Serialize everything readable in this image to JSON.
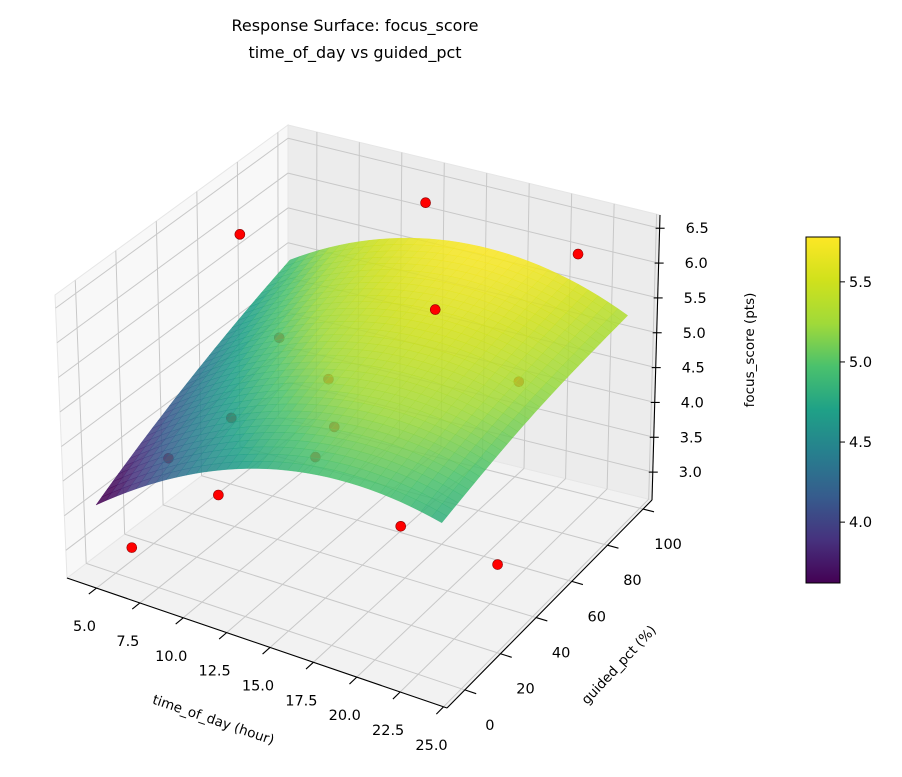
{
  "chart_data": {
    "type": "surface",
    "title": "Response Surface: focus_score",
    "subtitle": "time_of_day vs guided_pct",
    "xlabel": "time_of_day (hour)",
    "ylabel": "guided_pct (%)",
    "zlabel": "focus_score (pts)",
    "xlim": [
      3.3,
      25.2
    ],
    "ylim": [
      -10,
      105
    ],
    "zlim": [
      2.6,
      6.69
    ],
    "xticks": [
      "5.0",
      "7.5",
      "10.0",
      "12.5",
      "15.0",
      "17.5",
      "20.0",
      "22.5",
      "25.0"
    ],
    "yticks": [
      "0",
      "20",
      "40",
      "60",
      "80",
      "100"
    ],
    "zticks": [
      "3.0",
      "3.5",
      "4.0",
      "4.5",
      "5.0",
      "5.5",
      "6.0",
      "6.5"
    ],
    "grid": true,
    "surface": {
      "colormap": "viridis",
      "x": [
        4,
        9,
        14,
        19,
        24
      ],
      "y": [
        0,
        25,
        50,
        75,
        100
      ],
      "z": [
        [
          3.5,
          4.31,
          4.8,
          4.96,
          4.8
        ],
        [
          3.91,
          4.66,
          5.09,
          5.2,
          4.98
        ],
        [
          4.28,
          4.98,
          5.35,
          5.4,
          5.13
        ],
        [
          4.61,
          5.25,
          5.57,
          5.56,
          5.23
        ],
        [
          4.9,
          5.49,
          5.75,
          5.69,
          5.3
        ]
      ]
    },
    "scatter": {
      "color": "#ff0000",
      "points": [
        [
          6,
          0,
          3.05
        ],
        [
          24,
          30,
          3.5
        ],
        [
          4,
          75,
          5.8
        ],
        [
          12,
          100,
          6.2
        ],
        [
          21,
          100,
          6.0
        ],
        [
          8,
          60,
          4.9
        ],
        [
          12,
          50,
          4.8
        ],
        [
          16,
          70,
          5.6
        ],
        [
          22,
          60,
          5.2
        ],
        [
          8,
          35,
          4.3
        ],
        [
          14,
          35,
          4.6
        ],
        [
          6,
          20,
          3.9
        ],
        [
          14,
          25,
          4.4
        ],
        [
          10,
          10,
          3.9
        ],
        [
          20,
          15,
          4.1
        ]
      ]
    },
    "colorbar": {
      "colormap": "viridis",
      "range": [
        3.62,
        5.78
      ],
      "ticks": [
        "4.0",
        "4.5",
        "5.0",
        "5.5"
      ]
    }
  }
}
